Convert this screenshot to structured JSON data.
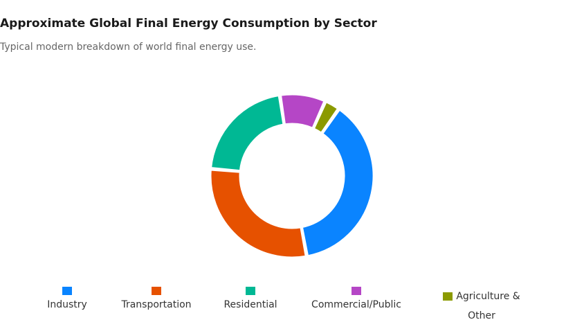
{
  "chart_data": {
    "type": "pie",
    "variant": "donut",
    "title": "Approximate Global Final Energy Consumption by Sector",
    "subtitle": "Typical modern breakdown of world final energy use.",
    "legend_position": "bottom",
    "categories": [
      "Industry",
      "Transportation",
      "Residential",
      "Commercial/Public",
      "Agriculture & Other"
    ],
    "values": [
      37,
      29,
      21,
      9,
      3
    ],
    "colors": [
      "#0a84ff",
      "#e65100",
      "#00b894",
      "#b546c6",
      "#8b9a00"
    ]
  },
  "legend": [
    {
      "label_line1": "",
      "label_line2": "Industry",
      "color": "#0a84ff"
    },
    {
      "label_line1": "",
      "label_line2": "Transportation",
      "color": "#e65100"
    },
    {
      "label_line1": "",
      "label_line2": "Residential",
      "color": "#00b894"
    },
    {
      "label_line1": "",
      "label_line2": "Commercial/Public",
      "color": "#b546c6"
    },
    {
      "label_line1": "Agriculture &",
      "label_line2": "Other",
      "color": "#8b9a00"
    }
  ]
}
